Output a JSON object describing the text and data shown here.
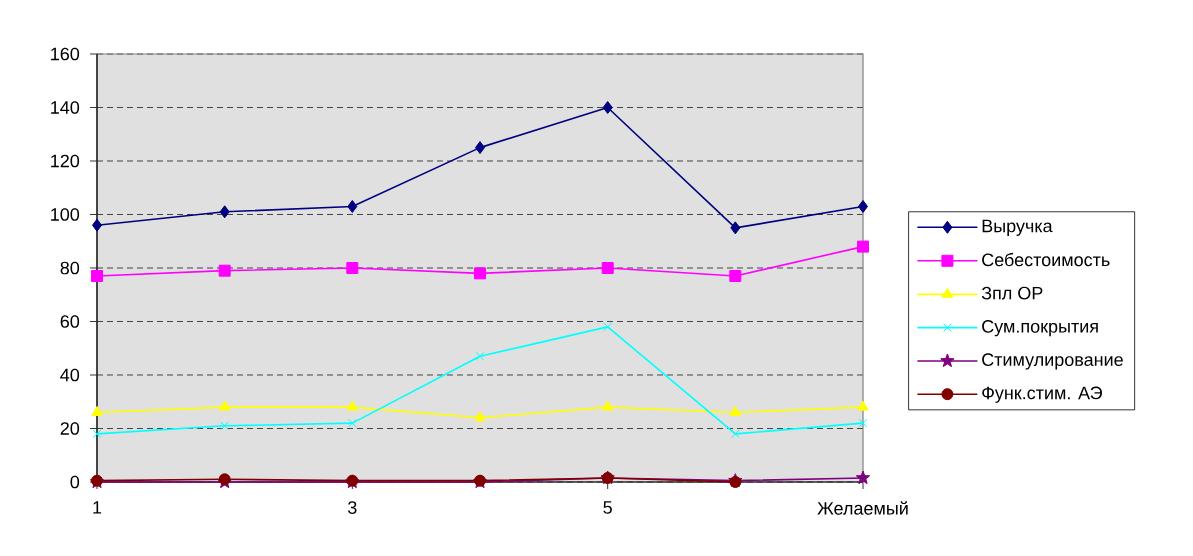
{
  "chart_data": {
    "type": "line",
    "categories": [
      "1",
      null,
      "3",
      null,
      "5",
      null,
      "Желаемый"
    ],
    "series": [
      {
        "name": "Выручка",
        "color": "#000080",
        "marker": "diamond",
        "values": [
          96,
          101,
          103,
          125,
          140,
          95,
          103
        ]
      },
      {
        "name": "Себестоимость",
        "color": "#ff00ff",
        "marker": "square",
        "values": [
          77,
          79,
          80,
          78,
          80,
          77,
          88
        ]
      },
      {
        "name": "Зпл ОР",
        "color": "#ffff00",
        "marker": "triangle",
        "values": [
          26,
          28,
          28,
          24,
          28,
          26,
          28
        ]
      },
      {
        "name": "Сум.покрытия",
        "color": "#00ffff",
        "marker": "cross",
        "values": [
          18,
          21,
          22,
          47,
          58,
          18,
          22
        ]
      },
      {
        "name": "Стимулирование",
        "color": "#800080",
        "marker": "star",
        "values": [
          0,
          0,
          0,
          0,
          1.5,
          0.5,
          1.5
        ]
      },
      {
        "name": "Функ.стим. АЭ",
        "color": "#800000",
        "marker": "circle",
        "values": [
          0.5,
          1,
          0.5,
          0.5,
          1.5,
          0,
          null
        ]
      }
    ],
    "ylim": [
      0,
      160
    ],
    "yticks": [
      0,
      20,
      40,
      60,
      80,
      100,
      120,
      140,
      160
    ],
    "grid": "y",
    "legend": "right"
  }
}
